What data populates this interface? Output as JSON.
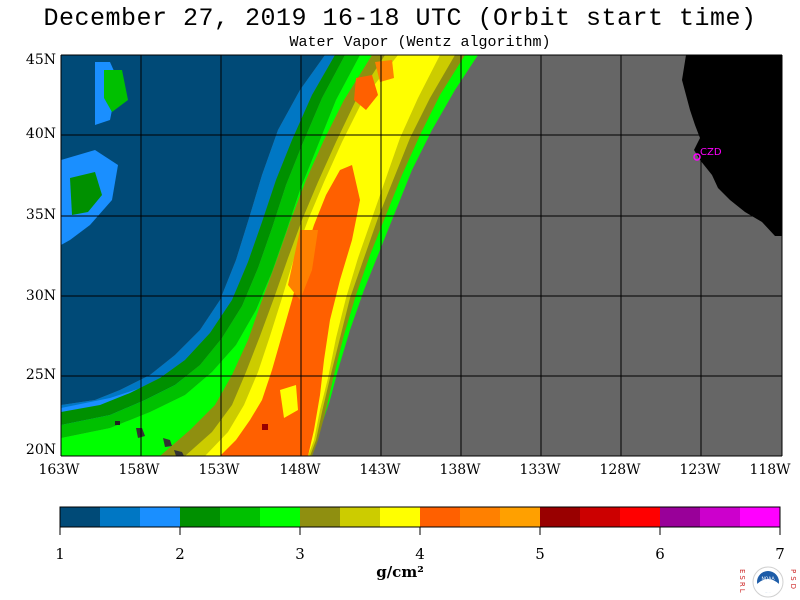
{
  "title": "December 27, 2019  16-18 UTC  (Orbit start time)",
  "subtitle": "Water Vapor (Wentz algorithm)",
  "map": {
    "lat_labels": [
      "45N",
      "40N",
      "35N",
      "30N",
      "25N",
      "20N"
    ],
    "lon_labels": [
      "163W",
      "158W",
      "153W",
      "148W",
      "143W",
      "138W",
      "133W",
      "128W",
      "123W",
      "118W"
    ],
    "station_label": "CZD",
    "colors": {
      "no_data": "#666666",
      "land": "#000000",
      "grid": "#000000",
      "station": "#ff00ff"
    }
  },
  "colorbar": {
    "ticks": [
      "1",
      "2",
      "3",
      "4",
      "5",
      "6",
      "7"
    ],
    "units": "g/cm²",
    "colors": [
      "#004a77",
      "#0077c4",
      "#1a8fff",
      "#009000",
      "#00c000",
      "#00ff00",
      "#8f8f10",
      "#cccc00",
      "#ffff00",
      "#ff6000",
      "#ff8000",
      "#ffa000",
      "#990000",
      "#cc0000",
      "#ff0000",
      "#990099",
      "#cc00cc",
      "#ff00ff"
    ]
  },
  "logo": {
    "left_letters": "ESRL",
    "right_letters": "PSD",
    "center_text": "NOAA"
  }
}
